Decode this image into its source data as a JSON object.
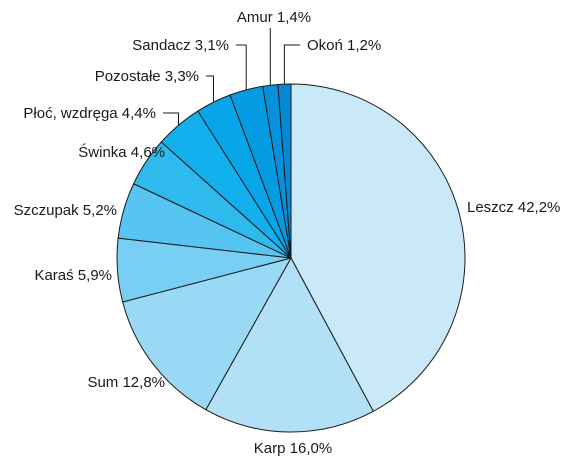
{
  "chart_data": {
    "type": "pie",
    "title": "",
    "start": "12 o'clock",
    "direction": "clockwise",
    "legend": "none",
    "slices": [
      {
        "label": "Leszcz",
        "value": 42.2,
        "text": "Leszcz 42,2%",
        "color": "#c9e9f9"
      },
      {
        "label": "Karp",
        "value": 16.0,
        "text": "Karp 16,0%",
        "color": "#b2e1f7"
      },
      {
        "label": "Sum",
        "value": 12.8,
        "text": "Sum 12,8%",
        "color": "#9ad9f5"
      },
      {
        "label": "Karaś",
        "value": 5.9,
        "text": "Karaś 5,9%",
        "color": "#78cff3"
      },
      {
        "label": "Szczupak",
        "value": 5.2,
        "text": "Szczupak 5,2%",
        "color": "#56c5f1"
      },
      {
        "label": "Świnka",
        "value": 4.6,
        "text": "Świnka 4,6%",
        "color": "#2fbaee"
      },
      {
        "label": "Płoć, wzdręga",
        "value": 4.4,
        "text": "Płoć, wzdręga 4,4%",
        "color": "#12b0ec"
      },
      {
        "label": "Pozostałe",
        "value": 3.3,
        "text": "Pozostałe 3,3%",
        "color": "#06a6e8"
      },
      {
        "label": "Sandacz",
        "value": 3.1,
        "text": "Sandacz 3,1%",
        "color": "#059be2"
      },
      {
        "label": "Amur",
        "value": 1.4,
        "text": "Amur 1,4%",
        "color": "#0591dc"
      },
      {
        "label": "Okoń",
        "value": 1.2,
        "text": "Okoń 1,2%",
        "color": "#0588d6"
      }
    ]
  }
}
